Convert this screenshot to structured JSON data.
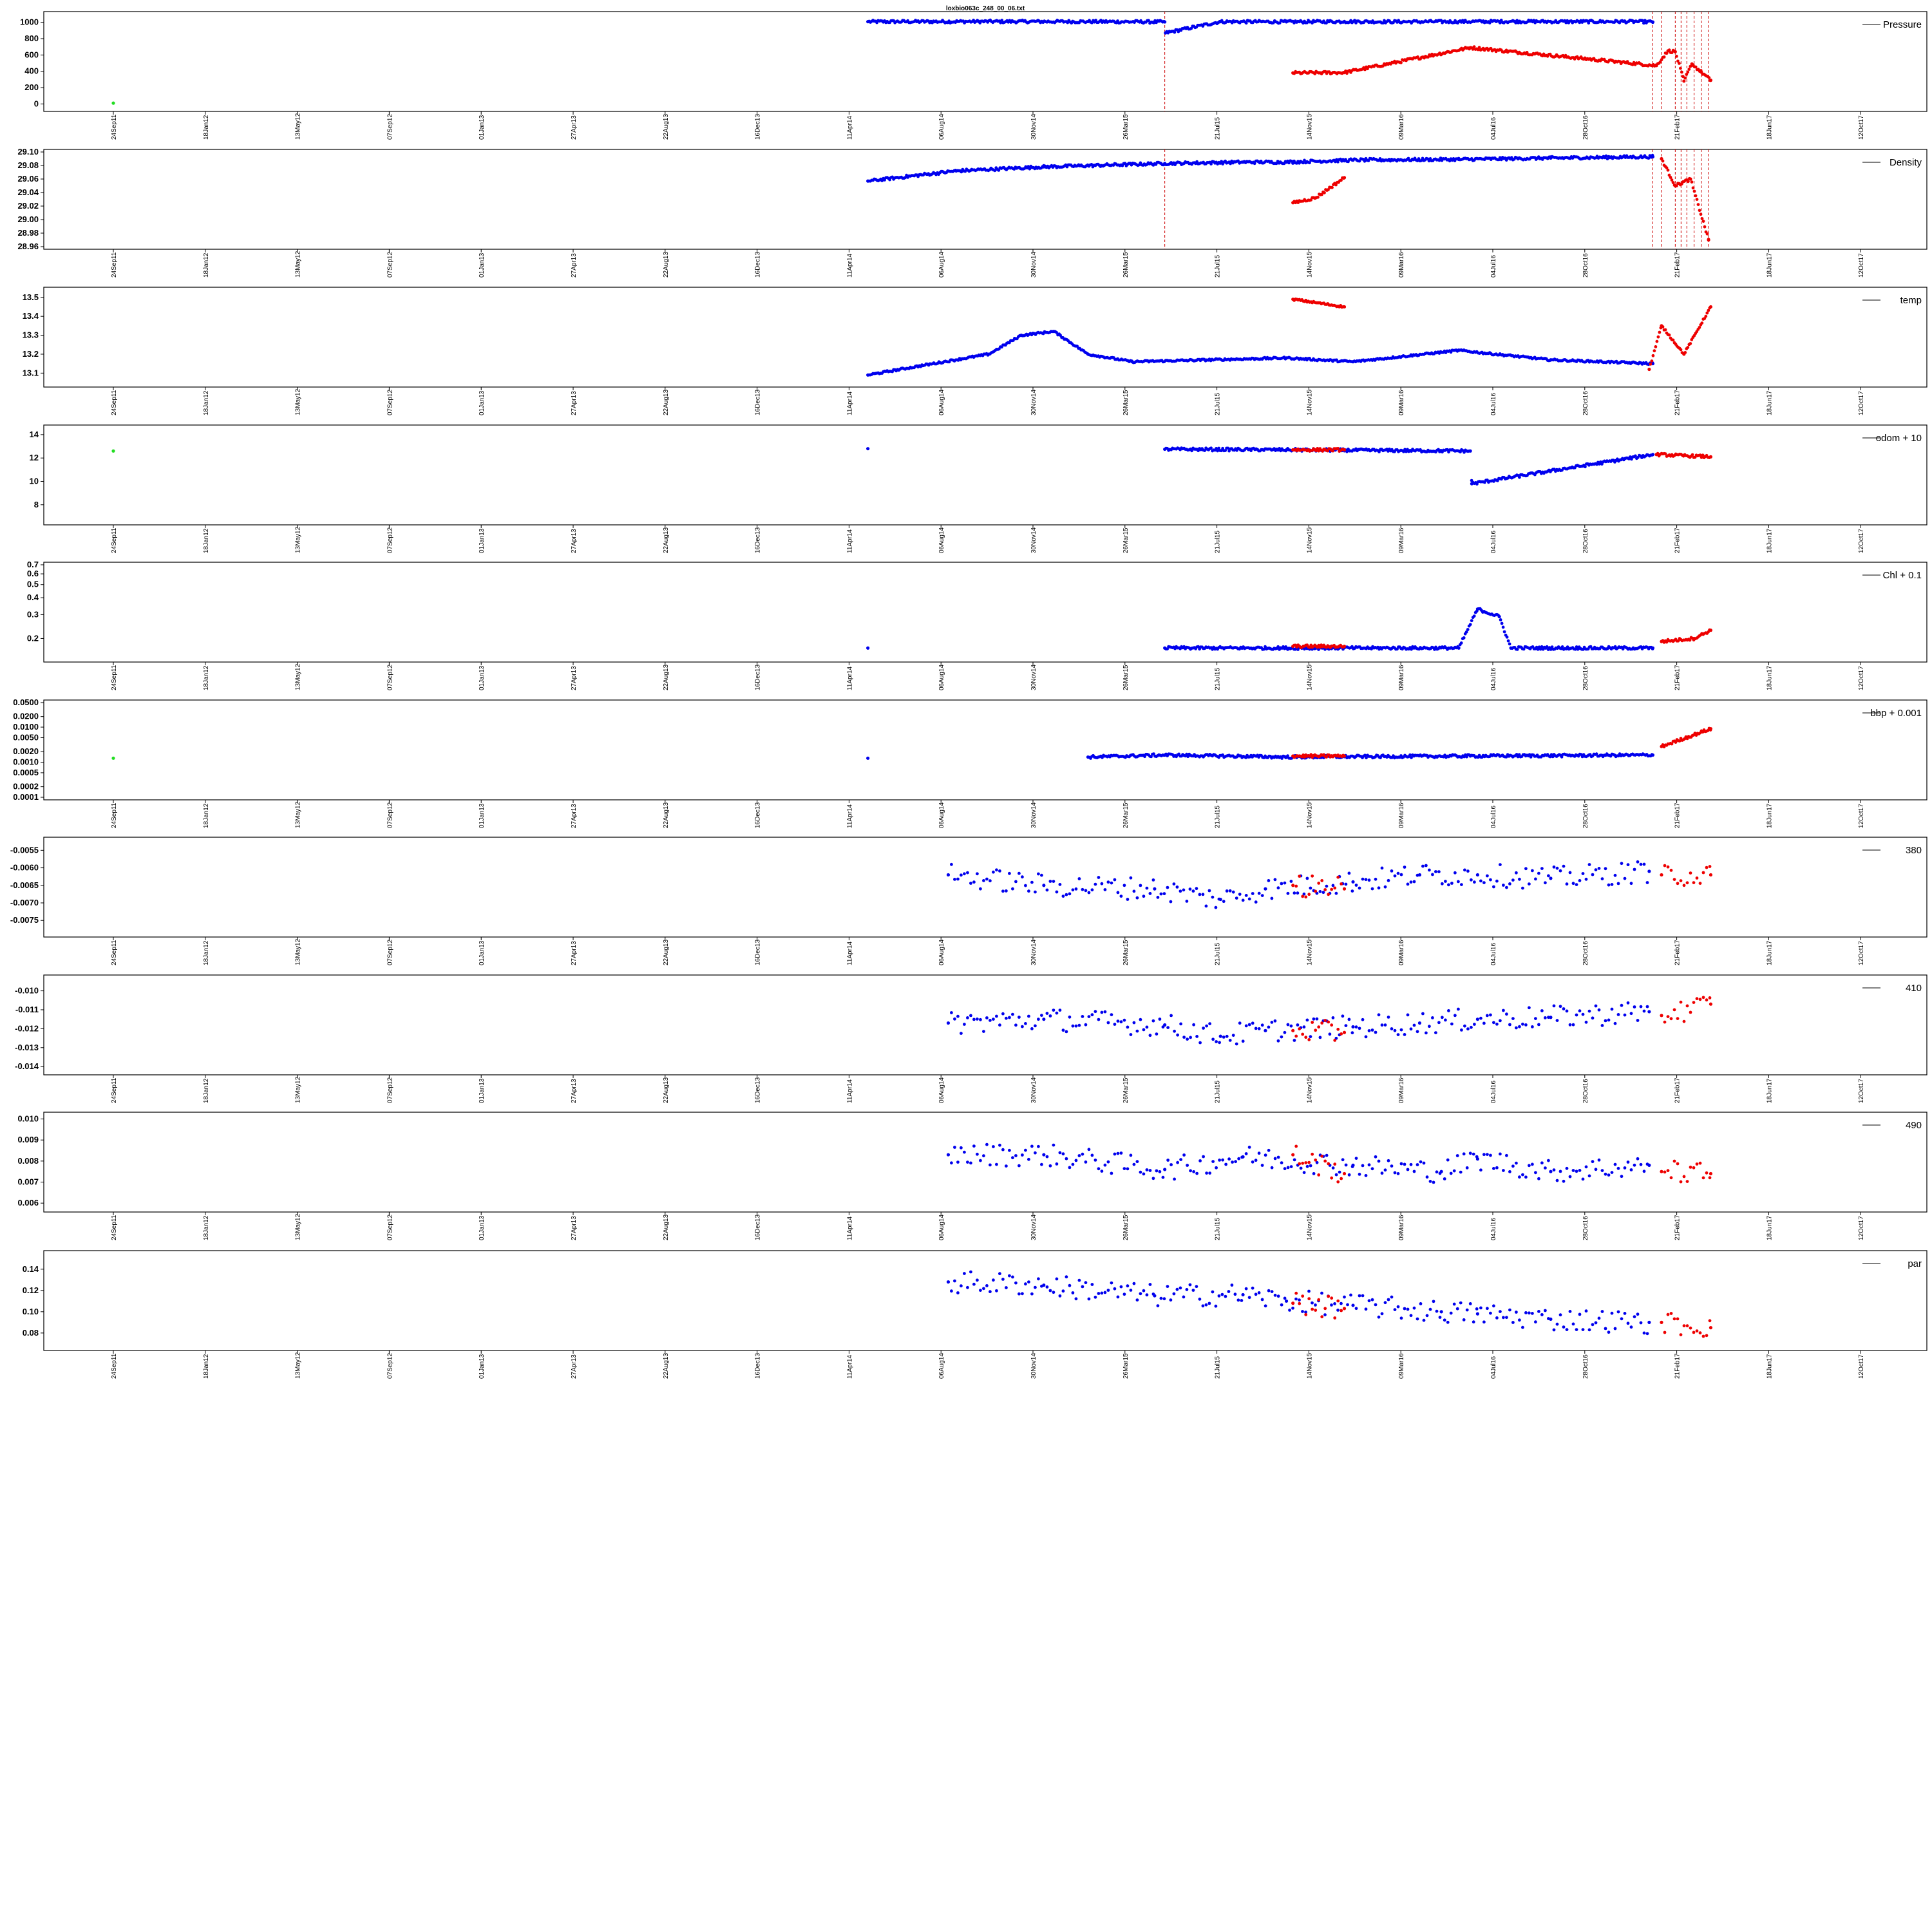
{
  "figure_title": "loxbio063c_248_00_06.txt",
  "colors": {
    "good": "#0000ee",
    "flagged": "#ee0000",
    "early": "#22dd22",
    "event_line": "#cc0000",
    "axis": "#000000"
  },
  "x_axis_dates": [
    "24Sep11",
    "18Jan12",
    "13May12",
    "07Sep12",
    "01Jan13",
    "27Apr13",
    "22Aug13",
    "16Dec13",
    "11Apr14",
    "06Aug14",
    "30Nov14",
    "26Mar15",
    "21Jul15",
    "14Nov15",
    "09Mar16",
    "04Jul16",
    "28Oct16",
    "21Feb17",
    "18Jun17",
    "12Oct17"
  ],
  "chart_data": [
    {
      "type": "scatter",
      "title": "loxbio063c_248_00_06.txt",
      "legend": "Pressure",
      "yticks": [
        "0",
        "200",
        "400",
        "600",
        "800",
        "1000"
      ],
      "ylim": [
        -60,
        1100
      ],
      "series": [
        {
          "name": "good",
          "color": "#0000ee",
          "points": [
            [
              "2014-08-01",
              1008
            ],
            [
              "2015-01-01",
              1010
            ],
            [
              "2015-06-01",
              1009
            ],
            [
              "2015-09-15",
              1005
            ],
            [
              "2015-09-16",
              870
            ],
            [
              "2015-12-01",
              1008
            ],
            [
              "2016-03-01",
              1006
            ],
            [
              "2016-05-20",
              1010
            ],
            [
              "2016-08-01",
              1007
            ],
            [
              "2016-10-25",
              1009
            ],
            [
              "2017-01-10",
              1011
            ],
            [
              "2017-04-01",
              1008
            ],
            [
              "2017-06-25",
              1010
            ],
            [
              "2017-07-20",
              1004
            ]
          ]
        },
        {
          "name": "flagged",
          "color": "#ee0000",
          "points": [
            [
              "2016-03-10",
              380
            ],
            [
              "2016-04-15",
              382
            ],
            [
              "2016-05-20",
              385
            ],
            [
              "2016-11-10",
              690
            ],
            [
              "2017-07-25",
              470
            ],
            [
              "2017-08-10",
              650
            ],
            [
              "2017-08-20",
              640
            ],
            [
              "2017-09-01",
              280
            ],
            [
              "2017-09-12",
              490
            ],
            [
              "2017-09-25",
              390
            ],
            [
              "2017-10-08",
              290
            ]
          ]
        },
        {
          "name": "early",
          "color": "#22dd22",
          "points": [
            [
              "2011-09-24",
              10
            ]
          ]
        }
      ],
      "event_lines": [
        "2015-09-15",
        "2017-07-20",
        "2017-08-01",
        "2017-08-20",
        "2017-08-28",
        "2017-09-05",
        "2017-09-15",
        "2017-09-25",
        "2017-10-05"
      ]
    },
    {
      "type": "scatter",
      "legend": "Density",
      "yticks": [
        "28.96",
        "28.98",
        "29.00",
        "29.02",
        "29.04",
        "29.06",
        "29.08",
        "29.10"
      ],
      "ylim": [
        28.96,
        29.1
      ],
      "series": [
        {
          "name": "good",
          "color": "#0000ee",
          "points": [
            [
              "2014-08-01",
              29.057
            ],
            [
              "2014-12-01",
              29.072
            ],
            [
              "2015-04-01",
              29.078
            ],
            [
              "2015-09-15",
              29.083
            ],
            [
              "2016-01-01",
              29.085
            ],
            [
              "2016-03-01",
              29.085
            ],
            [
              "2016-06-01",
              29.088
            ],
            [
              "2016-10-25",
              29.089
            ],
            [
              "2017-03-01",
              29.091
            ],
            [
              "2017-07-20",
              29.093
            ]
          ]
        },
        {
          "name": "flagged",
          "color": "#ee0000",
          "points": [
            [
              "2016-03-10",
              29.025
            ],
            [
              "2016-04-10",
              29.032
            ],
            [
              "2016-05-20",
              29.062
            ],
            [
              "2017-08-01",
              29.09
            ],
            [
              "2017-08-20",
              29.05
            ],
            [
              "2017-09-10",
              29.06
            ],
            [
              "2017-10-05",
              28.97
            ]
          ]
        }
      ],
      "event_lines": [
        "2015-09-15",
        "2017-07-20",
        "2017-08-01",
        "2017-08-20",
        "2017-08-28",
        "2017-09-05",
        "2017-09-15",
        "2017-09-25",
        "2017-10-05"
      ]
    },
    {
      "type": "scatter",
      "legend": "temp",
      "yticks": [
        "13.1",
        "13.2",
        "13.3",
        "13.4",
        "13.5"
      ],
      "ylim": [
        13.04,
        13.54
      ],
      "series": [
        {
          "name": "good",
          "color": "#0000ee",
          "points": [
            [
              "2014-08-01",
              13.09
            ],
            [
              "2014-10-15",
              13.14
            ],
            [
              "2015-01-15",
              13.2
            ],
            [
              "2015-03-01",
              13.3
            ],
            [
              "2015-04-15",
              13.32
            ],
            [
              "2015-06-01",
              13.2
            ],
            [
              "2015-08-01",
              13.16
            ],
            [
              "2016-03-01",
              13.18
            ],
            [
              "2016-06-01",
              13.16
            ],
            [
              "2016-10-25",
              13.22
            ],
            [
              "2017-03-01",
              13.17
            ],
            [
              "2017-07-20",
              13.15
            ]
          ]
        },
        {
          "name": "flagged",
          "color": "#ee0000",
          "points": [
            [
              "2016-03-10",
              13.49
            ],
            [
              "2016-05-20",
              13.45
            ],
            [
              "2017-07-15",
              13.12
            ],
            [
              "2017-08-01",
              13.35
            ],
            [
              "2017-09-01",
              13.2
            ],
            [
              "2017-10-08",
              13.45
            ]
          ]
        }
      ]
    },
    {
      "type": "scatter",
      "legend": "odom + 10",
      "yticks": [
        "8",
        "10",
        "12",
        "14"
      ],
      "ylim": [
        6.5,
        14.6
      ],
      "series": [
        {
          "name": "good",
          "color": "#0000ee",
          "points": [
            [
              "2014-08-01",
              12.8
            ],
            [
              "2015-09-15",
              12.75
            ],
            [
              "2016-03-01",
              12.7
            ],
            [
              "2016-11-10",
              12.6
            ],
            [
              "2016-11-12",
              9.8
            ],
            [
              "2017-07-20",
              12.3
            ]
          ]
        },
        {
          "name": "flagged",
          "color": "#ee0000",
          "points": [
            [
              "2016-03-10",
              12.7
            ],
            [
              "2016-05-20",
              12.7
            ],
            [
              "2017-07-25",
              12.3
            ],
            [
              "2017-10-08",
              12.1
            ]
          ]
        },
        {
          "name": "early",
          "color": "#22dd22",
          "points": [
            [
              "2011-09-24",
              12.6
            ]
          ]
        }
      ]
    },
    {
      "type": "scatter",
      "legend": "Chl + 0.1",
      "yticks": [
        "0.2",
        "0.3",
        "0.4",
        "0.5",
        "0.6",
        "0.7"
      ],
      "yscale": "log",
      "ylim": [
        0.14,
        0.7
      ],
      "series": [
        {
          "name": "good",
          "color": "#0000ee",
          "points": [
            [
              "2014-08-01",
              0.17
            ],
            [
              "2015-09-15",
              0.17
            ],
            [
              "2016-03-01",
              0.17
            ],
            [
              "2016-10-25",
              0.17
            ],
            [
              "2016-11-20",
              0.33
            ],
            [
              "2016-12-20",
              0.29
            ],
            [
              "2017-01-05",
              0.17
            ],
            [
              "2017-07-20",
              0.17
            ]
          ]
        },
        {
          "name": "flagged",
          "color": "#ee0000",
          "points": [
            [
              "2016-03-10",
              0.175
            ],
            [
              "2016-05-20",
              0.175
            ],
            [
              "2017-08-01",
              0.19
            ],
            [
              "2017-09-15",
              0.2
            ],
            [
              "2017-10-08",
              0.23
            ]
          ]
        }
      ]
    },
    {
      "type": "scatter",
      "legend": "bbp + 0.001",
      "yticks": [
        "0.0001",
        "0.0002",
        "0.0005",
        "0.0010",
        "0.0020",
        "0.0050",
        "0.0100",
        "0.0200",
        "0.0500"
      ],
      "yscale": "log",
      "ylim": [
        0.0001,
        0.05
      ],
      "series": [
        {
          "name": "good",
          "color": "#0000ee",
          "points": [
            [
              "2014-08-01",
              0.0013
            ],
            [
              "2015-06-01",
              0.0014
            ],
            [
              "2015-09-15",
              0.0016
            ],
            [
              "2016-03-01",
              0.0014
            ],
            [
              "2016-11-10",
              0.0015
            ],
            [
              "2017-07-20",
              0.0016
            ]
          ]
        },
        {
          "name": "flagged",
          "color": "#ee0000",
          "points": [
            [
              "2016-03-10",
              0.0015
            ],
            [
              "2016-05-20",
              0.0015
            ],
            [
              "2017-08-01",
              0.0028
            ],
            [
              "2017-10-08",
              0.009
            ]
          ]
        },
        {
          "name": "early",
          "color": "#22dd22",
          "points": [
            [
              "2011-09-24",
              0.0013
            ]
          ]
        }
      ]
    },
    {
      "type": "scatter",
      "legend": "380",
      "yticks": [
        "-0.0075",
        "-0.0070",
        "-0.0065",
        "-0.0060",
        "-0.0055"
      ],
      "ylim": [
        -0.0079,
        -0.0052
      ],
      "series": [
        {
          "name": "good",
          "color": "#0000ee",
          "points": [
            [
              "2014-11-20",
              -0.0062
            ],
            [
              "2015-04-01",
              -0.0065
            ],
            [
              "2015-09-01",
              -0.0066
            ],
            [
              "2015-12-01",
              -0.0069
            ],
            [
              "2016-02-01",
              -0.0066
            ],
            [
              "2016-06-01",
              -0.0064
            ],
            [
              "2016-09-01",
              -0.0062
            ],
            [
              "2016-11-20",
              -0.0062
            ],
            [
              "2017-03-01",
              -0.0063
            ],
            [
              "2017-07-15",
              -0.0061
            ]
          ]
        },
        {
          "name": "flagged",
          "color": "#ee0000",
          "points": [
            [
              "2016-03-10",
              -0.0065
            ],
            [
              "2016-05-20",
              -0.0066
            ],
            [
              "2017-08-01",
              -0.0062
            ],
            [
              "2017-10-08",
              -0.0062
            ]
          ]
        }
      ]
    },
    {
      "type": "scatter",
      "legend": "410",
      "yticks": [
        "-0.014",
        "-0.013",
        "-0.012",
        "-0.011",
        "-0.010"
      ],
      "ylim": [
        -0.0143,
        -0.0093
      ],
      "series": [
        {
          "name": "good",
          "color": "#0000ee",
          "points": [
            [
              "2014-11-20",
              -0.0117
            ],
            [
              "2015-04-01",
              -0.0115
            ],
            [
              "2015-09-15",
              -0.0118
            ],
            [
              "2015-12-01",
              -0.0124
            ],
            [
              "2016-02-01",
              -0.0121
            ],
            [
              "2016-06-01",
              -0.0119
            ],
            [
              "2016-09-01",
              -0.0117
            ],
            [
              "2016-11-20",
              -0.0115
            ],
            [
              "2017-03-01",
              -0.0114
            ],
            [
              "2017-07-15",
              -0.0111
            ]
          ]
        },
        {
          "name": "flagged",
          "color": "#ee0000",
          "points": [
            [
              "2016-03-10",
              -0.0121
            ],
            [
              "2016-05-20",
              -0.0122
            ],
            [
              "2017-08-01",
              -0.0113
            ],
            [
              "2017-10-08",
              -0.0107
            ]
          ]
        }
      ]
    },
    {
      "type": "scatter",
      "legend": "490",
      "yticks": [
        "0.006",
        "0.007",
        "0.008",
        "0.009",
        "0.010"
      ],
      "ylim": [
        0.0057,
        0.0102
      ],
      "series": [
        {
          "name": "good",
          "color": "#0000ee",
          "points": [
            [
              "2014-11-20",
              0.0083
            ],
            [
              "2015-04-01",
              0.0083
            ],
            [
              "2015-09-15",
              0.0076
            ],
            [
              "2016-01-01",
              0.0082
            ],
            [
              "2016-06-01",
              0.0078
            ],
            [
              "2016-10-01",
              0.0075
            ],
            [
              "2016-11-20",
              0.0081
            ],
            [
              "2017-03-01",
              0.0075
            ],
            [
              "2017-07-15",
              0.0078
            ]
          ]
        },
        {
          "name": "flagged",
          "color": "#ee0000",
          "points": [
            [
              "2016-03-10",
              0.0083
            ],
            [
              "2016-05-20",
              0.0074
            ],
            [
              "2017-08-01",
              0.0075
            ],
            [
              "2017-10-08",
              0.0074
            ]
          ]
        }
      ]
    },
    {
      "type": "scatter",
      "legend": "par",
      "yticks": [
        "0.08",
        "0.10",
        "0.12",
        "0.14"
      ],
      "ylim": [
        0.066,
        0.155
      ],
      "series": [
        {
          "name": "good",
          "color": "#0000ee",
          "points": [
            [
              "2014-11-20",
              0.128
            ],
            [
              "2015-04-01",
              0.125
            ],
            [
              "2015-09-01",
              0.115
            ],
            [
              "2016-01-01",
              0.116
            ],
            [
              "2016-03-01",
              0.11
            ],
            [
              "2016-06-01",
              0.106
            ],
            [
              "2016-10-01",
              0.1
            ],
            [
              "2016-11-20",
              0.098
            ],
            [
              "2017-03-01",
              0.093
            ],
            [
              "2017-07-15",
              0.09
            ]
          ]
        },
        {
          "name": "flagged",
          "color": "#ee0000",
          "points": [
            [
              "2016-03-10",
              0.108
            ],
            [
              "2016-05-20",
              0.103
            ],
            [
              "2017-08-01",
              0.09
            ],
            [
              "2017-10-08",
              0.085
            ]
          ]
        }
      ]
    }
  ]
}
